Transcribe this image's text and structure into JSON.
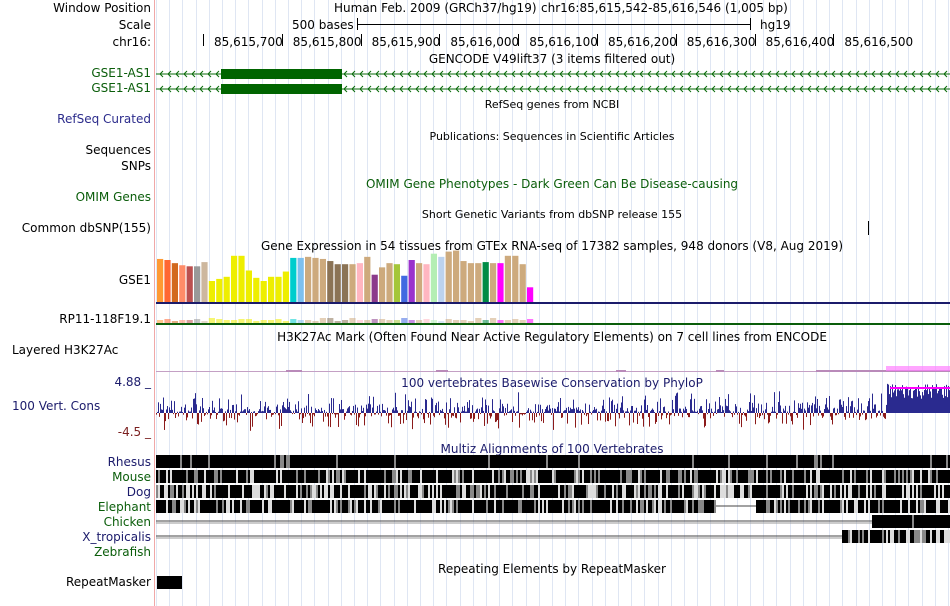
{
  "header": {
    "window_position_label": "Window Position",
    "scale_label": "Scale",
    "chr_label": "chr16:",
    "assembly": "Human Feb. 2009 (GRCh37/hg19)",
    "position": "chr16:85,615,542-85,616,546 (1,005 bp)",
    "scale_text": "500 bases",
    "db": "hg19",
    "ticks": [
      "85,615,700",
      "85,615,800",
      "85,615,900",
      "85,616,000",
      "85,616,100",
      "85,616,200",
      "85,616,300",
      "85,616,400",
      "85,616,500"
    ]
  },
  "tracks": {
    "gencode": {
      "title": "GENCODE V49lift37 (3 items filtered out)",
      "items": [
        "GSE1-AS1",
        "GSE1-AS1"
      ]
    },
    "refseq": {
      "title": "RefSeq genes from NCBI",
      "label": "RefSeq Curated"
    },
    "publications": {
      "title": "Publications: Sequences in Scientific Articles",
      "label1": "Sequences",
      "label2": "SNPs"
    },
    "omim": {
      "title": "OMIM Gene Phenotypes - Dark Green Can Be Disease-causing",
      "label": "OMIM Genes"
    },
    "dbsnp": {
      "title": "Short Genetic Variants from dbSNP release 155",
      "label": "Common dbSNP(155)"
    },
    "gtex": {
      "title": "Gene Expression in 54 tissues from GTEx RNA-seq of 17382 samples, 948 donors (V8, Aug 2019)",
      "gene1": "GSE1",
      "gene2": "RP11-118F19.1"
    },
    "h3k27ac": {
      "title": "H3K27Ac Mark (Often Found Near Active Regulatory Elements) on 7 cell lines from ENCODE",
      "label": "Layered H3K27Ac"
    },
    "phylop": {
      "title": "100 vertebrates Basewise Conservation by PhyloP",
      "label": "100 Vert. Cons",
      "max": "4.88 _",
      "min": "-4.5 _"
    },
    "multiz": {
      "title": "Multiz Alignments of 100 Vertebrates",
      "species": [
        "Rhesus",
        "Mouse",
        "Dog",
        "Elephant",
        "Chicken",
        "X_tropicalis",
        "Zebrafish"
      ]
    },
    "repeatmasker": {
      "title": "Repeating Elements by RepeatMasker",
      "label": "RepeatMasker"
    }
  },
  "chart_data": {
    "type": "bar",
    "title": "Gene Expression in 54 tissues from GTEx RNA-seq of 17382 samples, 948 donors (V8, Aug 2019)",
    "series": [
      {
        "name": "GSE1",
        "values": [
          41,
          40,
          37,
          35,
          34,
          34,
          38,
          20,
          22,
          24,
          44,
          44,
          30,
          23,
          20,
          24,
          24,
          29,
          42,
          42,
          43,
          42,
          41,
          39,
          36,
          36,
          36,
          37,
          43,
          26,
          33,
          37,
          36,
          25,
          40,
          37,
          36,
          46,
          43,
          48,
          49,
          39,
          37,
          37,
          38,
          37,
          37,
          44,
          44,
          36,
          14
        ]
      },
      {
        "name": "RP11-118F19.1",
        "values": [
          0,
          0,
          0,
          0,
          0,
          0,
          0,
          0,
          0,
          0,
          0,
          0,
          0,
          0,
          0,
          0,
          0,
          0,
          0,
          0,
          0,
          0,
          0,
          0,
          0,
          0,
          0,
          0,
          0,
          0,
          0,
          0,
          0,
          0,
          0,
          0,
          0,
          0,
          0,
          0,
          0,
          0,
          0,
          0,
          0,
          0,
          0,
          0,
          0,
          0,
          0
        ]
      }
    ],
    "colors": [
      "#ff9933",
      "#ff6633",
      "#d2691e",
      "#ff8c69",
      "#bb5050",
      "#999999",
      "#cdb79e",
      "#eeee00",
      "#eeee00",
      "#eeee00",
      "#eeee00",
      "#eeee00",
      "#eeee00",
      "#eeee00",
      "#eeee00",
      "#eeee00",
      "#eeee00",
      "#eeee00",
      "#00cdcd",
      "#7ec0ee",
      "#cdaa7d",
      "#cdaa7d",
      "#cdaa7d",
      "#8b7355",
      "#8b7355",
      "#8b7355",
      "#cdaa7d",
      "#ffb6c1",
      "#cdaa7d",
      "#8b3a8b",
      "#cdaa7d",
      "#cdaa7d",
      "#a4c639",
      "#4169e1",
      "#9a32cd",
      "#cdaa7d",
      "#ffb6c1",
      "#b4eeb4",
      "#bcd2ee",
      "#cdaa7d",
      "#cdaa7d",
      "#cdaa7d",
      "#cdaa7d",
      "#cdaa7d",
      "#008b45",
      "#cdaa7d",
      "#ff00ff",
      "#cdaa7d",
      "#cdaa7d",
      "#cdaa7d",
      "#ff00ff"
    ]
  }
}
